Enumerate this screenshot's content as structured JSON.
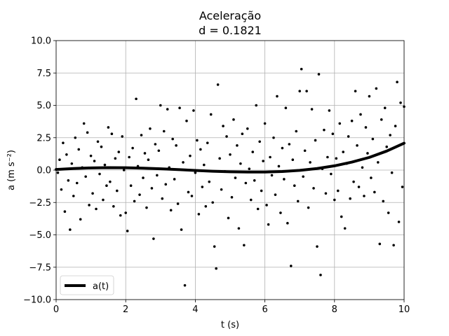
{
  "chart_data": {
    "type": "scatter",
    "title": "Aceleração",
    "subtitle": "d = 0.1821",
    "xlabel": "t (s)",
    "ylabel": "a (m s⁻²)",
    "xlim": [
      0,
      10
    ],
    "ylim": [
      -10,
      10
    ],
    "xticks": [
      0,
      2,
      4,
      6,
      8,
      10
    ],
    "xtick_labels": [
      "0",
      "2",
      "4",
      "6",
      "8",
      "10"
    ],
    "yticks": [
      -10,
      -7.5,
      -5,
      -2.5,
      0,
      2.5,
      5,
      7.5,
      10
    ],
    "ytick_labels": [
      "−10.0",
      "−7.5",
      "−5.0",
      "−2.5",
      "0.0",
      "2.5",
      "5.0",
      "7.5",
      "10.0"
    ],
    "grid": true,
    "legend_position": "lower-left",
    "colors": {
      "points": "#000000",
      "curve": "#000000",
      "grid": "#b0b0b0",
      "background": "#ffffff"
    },
    "series": [
      {
        "name": "a(t)",
        "kind": "line",
        "x": [
          0,
          0.5,
          1,
          1.5,
          2,
          2.5,
          3,
          3.5,
          4,
          4.5,
          5,
          5.5,
          6,
          6.5,
          7,
          7.5,
          8,
          8.5,
          9,
          9.5,
          10
        ],
        "y": [
          0.05,
          0.12,
          0.17,
          0.19,
          0.18,
          0.15,
          0.1,
          0.04,
          -0.03,
          -0.09,
          -0.13,
          -0.15,
          -0.15,
          -0.11,
          -0.02,
          0.12,
          0.33,
          0.62,
          0.98,
          1.47,
          2.08
        ]
      },
      {
        "kind": "scatter",
        "points": [
          [
            0.05,
            -0.2
          ],
          [
            0.1,
            0.8
          ],
          [
            0.15,
            -1.5
          ],
          [
            0.2,
            2.1
          ],
          [
            0.25,
            -3.2
          ],
          [
            0.3,
            1.2
          ],
          [
            0.35,
            -0.8
          ],
          [
            0.4,
            -4.6
          ],
          [
            0.45,
            0.5
          ],
          [
            0.5,
            -2.0
          ],
          [
            0.55,
            2.5
          ],
          [
            0.6,
            -1.0
          ],
          [
            0.65,
            1.6
          ],
          [
            0.7,
            -3.8
          ],
          [
            0.75,
            0.2
          ],
          [
            0.8,
            3.6
          ],
          [
            0.85,
            -0.5
          ],
          [
            0.9,
            2.9
          ],
          [
            0.95,
            -2.7
          ],
          [
            1.0,
            1.1
          ],
          [
            1.05,
            -1.8
          ],
          [
            1.1,
            0.7
          ],
          [
            1.15,
            -3.0
          ],
          [
            1.2,
            2.2
          ],
          [
            1.25,
            -0.3
          ],
          [
            1.3,
            1.8
          ],
          [
            1.35,
            -2.3
          ],
          [
            1.4,
            0.4
          ],
          [
            1.45,
            -1.2
          ],
          [
            1.5,
            3.3
          ],
          [
            1.55,
            -0.9
          ],
          [
            1.6,
            2.8
          ],
          [
            1.65,
            -2.8
          ],
          [
            1.7,
            0.9
          ],
          [
            1.75,
            -1.6
          ],
          [
            1.8,
            1.4
          ],
          [
            1.85,
            -3.5
          ],
          [
            1.9,
            2.6
          ],
          [
            1.95,
            0.0
          ],
          [
            2.0,
            -3.3
          ],
          [
            2.05,
            -4.7
          ],
          [
            2.1,
            1.0
          ],
          [
            2.15,
            -1.2
          ],
          [
            2.2,
            1.7
          ],
          [
            2.25,
            -2.4
          ],
          [
            2.3,
            5.5
          ],
          [
            2.35,
            0.3
          ],
          [
            2.4,
            -1.9
          ],
          [
            2.45,
            2.7
          ],
          [
            2.5,
            -0.6
          ],
          [
            2.55,
            1.3
          ],
          [
            2.6,
            -2.9
          ],
          [
            2.65,
            0.8
          ],
          [
            2.7,
            3.2
          ],
          [
            2.75,
            -1.4
          ],
          [
            2.8,
            -5.3
          ],
          [
            2.85,
            2.0
          ],
          [
            2.9,
            -0.4
          ],
          [
            2.95,
            1.5
          ],
          [
            3.0,
            5.0
          ],
          [
            3.05,
            -2.2
          ],
          [
            3.1,
            3.0
          ],
          [
            3.15,
            -1.1
          ],
          [
            3.2,
            4.7
          ],
          [
            3.25,
            0.2
          ],
          [
            3.3,
            -3.1
          ],
          [
            3.35,
            2.4
          ],
          [
            3.4,
            -0.7
          ],
          [
            3.45,
            1.9
          ],
          [
            3.5,
            -2.6
          ],
          [
            3.55,
            4.8
          ],
          [
            3.6,
            -4.6
          ],
          [
            3.65,
            0.6
          ],
          [
            3.7,
            -8.9
          ],
          [
            3.75,
            3.8
          ],
          [
            3.8,
            -1.7
          ],
          [
            3.85,
            1.1
          ],
          [
            3.9,
            -2.0
          ],
          [
            3.95,
            4.6
          ],
          [
            4.0,
            -0.2
          ],
          [
            4.05,
            2.3
          ],
          [
            4.1,
            -3.4
          ],
          [
            4.15,
            1.6
          ],
          [
            4.2,
            -1.3
          ],
          [
            4.25,
            0.4
          ],
          [
            4.3,
            -2.8
          ],
          [
            4.35,
            2.1
          ],
          [
            4.4,
            -0.9
          ],
          [
            4.45,
            4.3
          ],
          [
            4.5,
            -2.5
          ],
          [
            4.55,
            -5.9
          ],
          [
            4.6,
            -7.6
          ],
          [
            4.65,
            6.6
          ],
          [
            4.7,
            0.9
          ],
          [
            4.75,
            -1.5
          ],
          [
            4.8,
            3.4
          ],
          [
            4.85,
            -0.1
          ],
          [
            4.9,
            2.6
          ],
          [
            4.95,
            -3.7
          ],
          [
            5.0,
            1.2
          ],
          [
            5.05,
            -2.1
          ],
          [
            5.1,
            3.9
          ],
          [
            5.15,
            -0.6
          ],
          [
            5.2,
            1.9
          ],
          [
            5.25,
            -4.5
          ],
          [
            5.3,
            0.5
          ],
          [
            5.35,
            2.8
          ],
          [
            5.4,
            -5.8
          ],
          [
            5.45,
            -1.0
          ],
          [
            5.5,
            3.2
          ],
          [
            5.55,
            0.1
          ],
          [
            5.6,
            -2.3
          ],
          [
            5.65,
            1.4
          ],
          [
            5.7,
            -0.8
          ],
          [
            5.75,
            5.0
          ],
          [
            5.8,
            -3.0
          ],
          [
            5.85,
            2.2
          ],
          [
            5.9,
            -1.6
          ],
          [
            5.95,
            0.7
          ],
          [
            6.0,
            3.6
          ],
          [
            6.05,
            -2.7
          ],
          [
            6.1,
            -4.2
          ],
          [
            6.15,
            1.0
          ],
          [
            6.2,
            -0.4
          ],
          [
            6.25,
            2.5
          ],
          [
            6.3,
            -1.9
          ],
          [
            6.35,
            5.7
          ],
          [
            6.4,
            0.3
          ],
          [
            6.45,
            -3.3
          ],
          [
            6.5,
            1.7
          ],
          [
            6.55,
            -0.7
          ],
          [
            6.6,
            4.8
          ],
          [
            6.65,
            -4.1
          ],
          [
            6.7,
            2.0
          ],
          [
            6.75,
            -7.4
          ],
          [
            6.8,
            0.8
          ],
          [
            6.85,
            -1.2
          ],
          [
            6.9,
            3.0
          ],
          [
            6.95,
            -2.4
          ],
          [
            7.0,
            6.1
          ],
          [
            7.05,
            7.8
          ],
          [
            7.1,
            -0.5
          ],
          [
            7.15,
            1.5
          ],
          [
            7.2,
            6.1
          ],
          [
            7.25,
            -2.9
          ],
          [
            7.3,
            0.6
          ],
          [
            7.35,
            4.7
          ],
          [
            7.4,
            -1.4
          ],
          [
            7.45,
            2.3
          ],
          [
            7.5,
            -5.9
          ],
          [
            7.55,
            7.4
          ],
          [
            7.6,
            -8.1
          ],
          [
            7.65,
            0.1
          ],
          [
            7.7,
            3.1
          ],
          [
            7.75,
            -1.8
          ],
          [
            7.8,
            1.0
          ],
          [
            7.85,
            4.6
          ],
          [
            7.9,
            -0.3
          ],
          [
            7.95,
            2.8
          ],
          [
            8.0,
            -2.3
          ],
          [
            8.05,
            0.9
          ],
          [
            8.1,
            -1.6
          ],
          [
            8.15,
            3.6
          ],
          [
            8.2,
            -3.6
          ],
          [
            8.25,
            1.4
          ],
          [
            8.3,
            -4.5
          ],
          [
            8.35,
            0.5
          ],
          [
            8.4,
            2.6
          ],
          [
            8.45,
            -2.2
          ],
          [
            8.5,
            3.8
          ],
          [
            8.55,
            -0.9
          ],
          [
            8.6,
            6.1
          ],
          [
            8.65,
            1.9
          ],
          [
            8.7,
            -1.3
          ],
          [
            8.75,
            4.3
          ],
          [
            8.8,
            0.2
          ],
          [
            8.85,
            -2.0
          ],
          [
            8.9,
            3.3
          ],
          [
            8.95,
            1.3
          ],
          [
            9.0,
            5.7
          ],
          [
            9.05,
            -0.6
          ],
          [
            9.1,
            2.4
          ],
          [
            9.15,
            -1.7
          ],
          [
            9.2,
            6.3
          ],
          [
            9.25,
            0.6
          ],
          [
            9.3,
            -5.7
          ],
          [
            9.35,
            3.9
          ],
          [
            9.4,
            -2.4
          ],
          [
            9.45,
            4.8
          ],
          [
            9.5,
            1.8
          ],
          [
            9.55,
            -3.3
          ],
          [
            9.6,
            2.7
          ],
          [
            9.65,
            -0.2
          ],
          [
            9.7,
            -5.8
          ],
          [
            9.75,
            3.4
          ],
          [
            9.8,
            6.8
          ],
          [
            9.85,
            -4.0
          ],
          [
            9.9,
            5.2
          ],
          [
            9.95,
            -1.3
          ],
          [
            10.0,
            4.9
          ]
        ]
      }
    ]
  }
}
